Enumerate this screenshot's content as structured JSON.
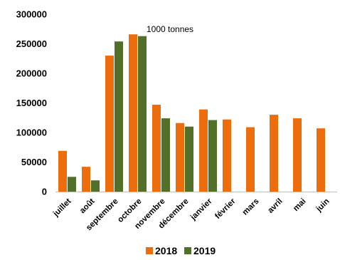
{
  "chart_data": {
    "type": "bar",
    "categories": [
      "juillet",
      "août",
      "septembre",
      "octobre",
      "novembre",
      "décembre",
      "janvier",
      "février",
      "mars",
      "avril",
      "mai",
      "juin"
    ],
    "series": [
      {
        "name": "2018",
        "color": "#ED6C0C",
        "values": [
          69000,
          42000,
          230000,
          266000,
          147000,
          116000,
          139000,
          122000,
          109000,
          130000,
          124000,
          107000
        ]
      },
      {
        "name": "2019",
        "color": "#52702A",
        "values": [
          25000,
          19000,
          254000,
          263000,
          124000,
          110000,
          121000,
          null,
          null,
          null,
          null,
          null
        ]
      }
    ],
    "annotation": "1000 tonnes",
    "ylim": [
      0,
      300000
    ],
    "yticks": [
      "0",
      "50000",
      "100000",
      "150000",
      "200000",
      "250000",
      "300000"
    ],
    "grid": false,
    "legend_position": "bottom"
  }
}
